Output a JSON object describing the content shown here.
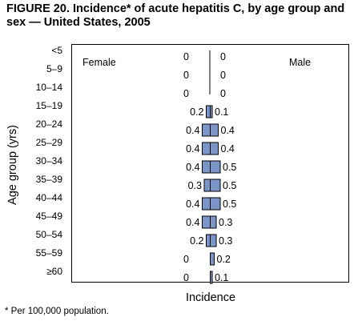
{
  "title": "FIGURE 20. Incidence* of acute hepatitis C, by age group and sex — United States, 2005",
  "footnote": "* Per 100,000 population.",
  "chart_data": {
    "type": "bar",
    "orientation": "horizontal-back-to-back",
    "title": "FIGURE 20. Incidence* of acute hepatitis C, by age group and sex — United States, 2005",
    "xlabel": "Incidence",
    "ylabel": "Age group (yrs)",
    "categories": [
      "<5",
      "5–9",
      "10–14",
      "15–19",
      "20–24",
      "25–29",
      "30–34",
      "35–39",
      "40–44",
      "45–49",
      "50–54",
      "55–59",
      "≥60"
    ],
    "series": [
      {
        "name": "Female",
        "values": [
          0,
          0,
          0,
          0.2,
          0.4,
          0.4,
          0.4,
          0.3,
          0.4,
          0.4,
          0.2,
          0,
          0
        ]
      },
      {
        "name": "Male",
        "values": [
          0,
          0,
          0,
          0.1,
          0.4,
          0.4,
          0.5,
          0.5,
          0.5,
          0.3,
          0.3,
          0.2,
          0.1
        ]
      }
    ],
    "value_labels": {
      "Female": [
        "0",
        "0",
        "0",
        "0.2",
        "0.4",
        "0.4",
        "0.4",
        "0.3",
        "0.4",
        "0.4",
        "0.2",
        "0",
        "0"
      ],
      "Male": [
        "0",
        "0",
        "0",
        "0.1",
        "0.4",
        "0.4",
        "0.5",
        "0.5",
        "0.5",
        "0.3",
        "0.3",
        "0.2",
        "0.1"
      ]
    },
    "bar_color": "#7a96c8",
    "bar_edge_color": "#000000",
    "grid": false,
    "legend": "inline labels"
  }
}
